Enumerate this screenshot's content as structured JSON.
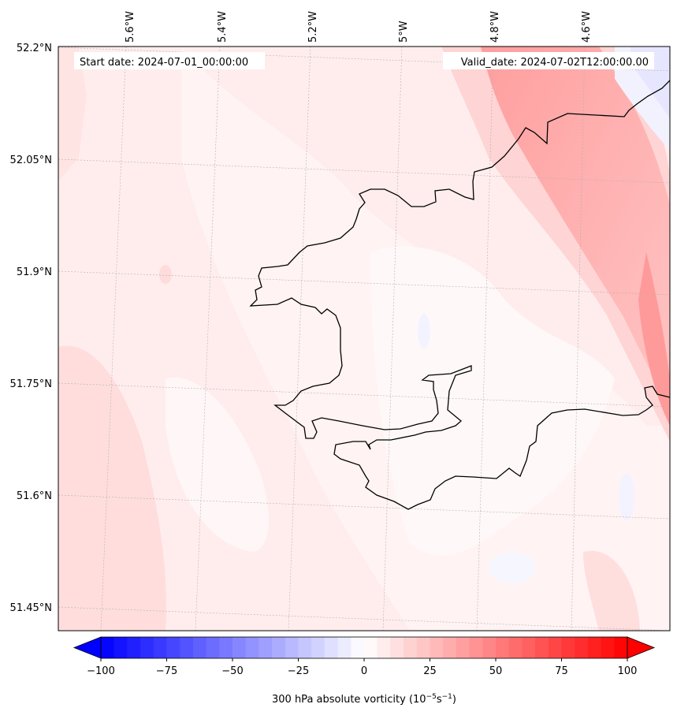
{
  "map": {
    "start_label": "Start date: 2024-07-01_00:00:00",
    "valid_label": "Valid_date: 2024-07-02T12:00:00.00",
    "lon_labels": [
      "5.6°W",
      "5.4°W",
      "5.2°W",
      "5°W",
      "4.8°W",
      "4.6°W"
    ],
    "lat_labels": [
      "52.2°N",
      "52.05°N",
      "51.9°N",
      "51.75°N",
      "51.6°N",
      "51.45°N"
    ]
  },
  "colorbar": {
    "label": "300 hPa absolute vorticity (10",
    "unit_exp1": "−5",
    "unit_mid": "s",
    "unit_exp2": "−1",
    "unit_close": ")",
    "ticks": [
      "−100",
      "−75",
      "−50",
      "−25",
      "0",
      "25",
      "50",
      "75",
      "100"
    ],
    "min": -100,
    "max": 100,
    "step": 5,
    "low_color": "#0000ff",
    "mid_color": "#ffffff",
    "high_color": "#ff0000"
  },
  "colors": {
    "coastline": "#000000",
    "gridline": "#b0b0b0"
  }
}
